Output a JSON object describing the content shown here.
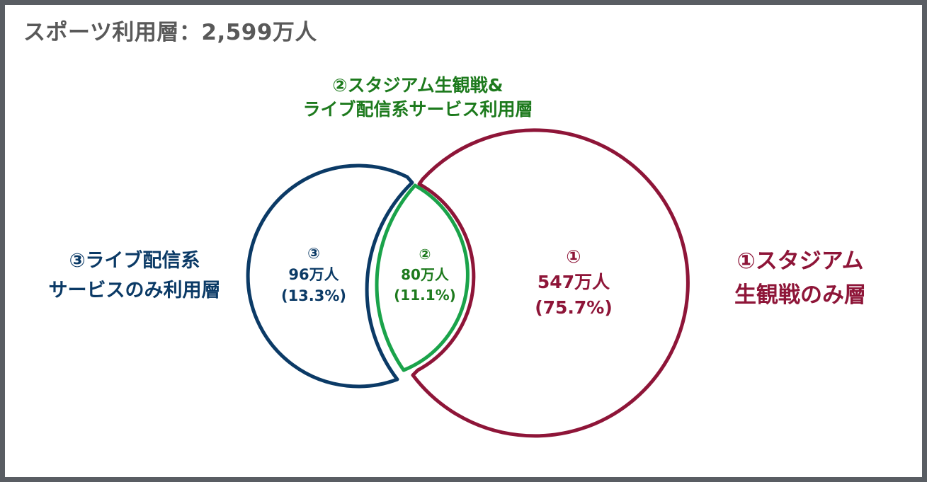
{
  "title": "スポーツ利用層：2,599万人",
  "segments": {
    "stadium_only": {
      "label_line1": "①スタジアム",
      "label_line2": "生観戦のみ層",
      "number": "①",
      "value": "547万人",
      "percent": "(75.7%)"
    },
    "overlap": {
      "label_line1": "②スタジアム生観戦&",
      "label_line2": "ライブ配信系サービス利用層",
      "number": "②",
      "value": "80万人",
      "percent": "(11.1%)"
    },
    "live_only": {
      "label_line1": "③ライブ配信系",
      "label_line2": "サービスのみ利用層",
      "number": "③",
      "value": "96万人",
      "percent": "(13.3%)"
    }
  },
  "colors": {
    "stadium": "#8e1538",
    "overlap": "#1aa34a",
    "live": "#0b3a66",
    "frame": "#595d63",
    "title": "#595959"
  }
}
